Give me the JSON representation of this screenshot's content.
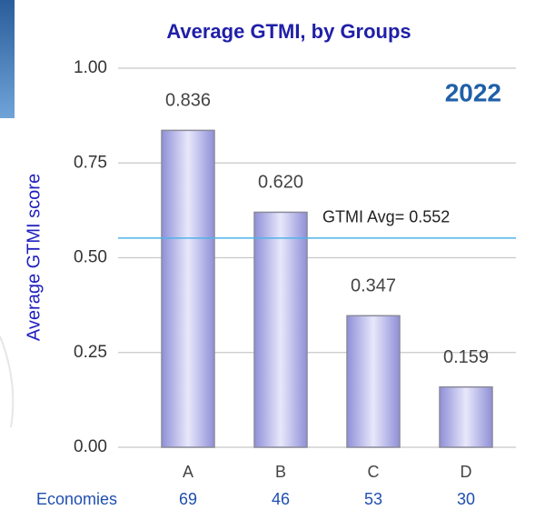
{
  "chart_data": {
    "type": "bar",
    "title": "Average GTMI, by Groups",
    "annotation": "2022",
    "y_label": "Average GTMI score",
    "categories": [
      "A",
      "B",
      "C",
      "D"
    ],
    "values": [
      0.836,
      0.62,
      0.347,
      0.159
    ],
    "value_labels": [
      "0.836",
      "0.620",
      "0.347",
      "0.159"
    ],
    "color": "#a8a8e8",
    "ylim": [
      0,
      1
    ],
    "yticks": [
      {
        "value": 0,
        "label": "0.00"
      },
      {
        "value": 0.25,
        "label": "0.25"
      },
      {
        "value": 0.5,
        "label": "0.50"
      },
      {
        "value": 0.75,
        "label": "0.75"
      },
      {
        "value": 1,
        "label": "1.00"
      }
    ],
    "grid": true,
    "reference_line": {
      "value": 0.552,
      "label": "GTMI Avg= 0.552",
      "color": "#4fb3e8"
    },
    "economies": {
      "label": "Economies",
      "counts": [
        69,
        46,
        53,
        30
      ]
    }
  }
}
